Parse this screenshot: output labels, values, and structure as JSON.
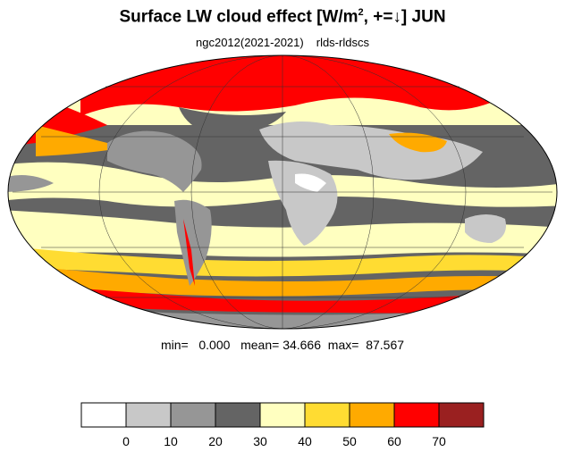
{
  "title": {
    "main": "Surface LW cloud effect [W/m",
    "superscript": "2",
    "suffix": ", +=↓]  JUN"
  },
  "subtitle": {
    "case": "ngc2012(2021-2021)",
    "variable": "rlds-rldscs"
  },
  "stats": {
    "min_label": "min=",
    "min": "0.000",
    "mean_label": "mean=",
    "mean": "34.666",
    "max_label": "max=",
    "max": "87.567"
  },
  "colorbar": {
    "colors": [
      "#ffffff",
      "#c8c8c8",
      "#969696",
      "#646464",
      "#ffffc0",
      "#ffdc32",
      "#ffaa00",
      "#ff0000",
      "#9a2020"
    ],
    "tick_labels": [
      "0",
      "10",
      "20",
      "30",
      "40",
      "50",
      "60",
      "70"
    ]
  },
  "map": {
    "projection": "mollweide",
    "colors": {
      "ocean_grey_dark": "#646464",
      "grey_mid": "#969696",
      "grey_light": "#c8c8c8",
      "yellow_pale": "#ffffc0",
      "yellow": "#ffdc32",
      "orange": "#ffaa00",
      "red": "#ff0000",
      "dark_red": "#9a2020"
    }
  }
}
